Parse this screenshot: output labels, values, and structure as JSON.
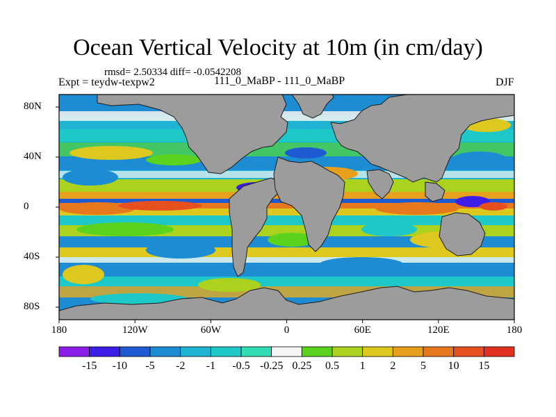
{
  "title": "Ocean Vertical Velocity at 10m (in cm/day)",
  "stats": "rmsd= 2.50334 diff= -0.0542208",
  "experiment": "Expt = teydw-texpw2",
  "comparison": "111_0_MaBP - 111_0_MaBP",
  "season": "DJF",
  "lat_ticks": [
    {
      "label": "80N",
      "lat": 80
    },
    {
      "label": "40N",
      "lat": 40
    },
    {
      "label": "0",
      "lat": 0
    },
    {
      "label": "40S",
      "lat": -40
    },
    {
      "label": "80S",
      "lat": -80
    }
  ],
  "lon_ticks": [
    {
      "label": "180",
      "lon": -180
    },
    {
      "label": "120W",
      "lon": -120
    },
    {
      "label": "60W",
      "lon": -60
    },
    {
      "label": "0",
      "lon": 0
    },
    {
      "label": "60E",
      "lon": 60
    },
    {
      "label": "120E",
      "lon": 120
    },
    {
      "label": "180",
      "lon": 180
    }
  ],
  "colorbar": {
    "levels": [
      "-15",
      "-10",
      "-5",
      "-2",
      "-1",
      "-0.5",
      "-0.25",
      "0.25",
      "0.5",
      "1",
      "2",
      "5",
      "10",
      "15"
    ],
    "colors": [
      "#8a1ee6",
      "#3c1ee6",
      "#1e5ad2",
      "#1e8cd2",
      "#1eb4d2",
      "#1ec8c8",
      "#32dcb4",
      "#f5f5f5",
      "#5ad21e",
      "#aad21e",
      "#dcc81e",
      "#e6a01e",
      "#e6781e",
      "#e6501e",
      "#e0321e"
    ]
  },
  "colors": {
    "land": "#9c9c9c",
    "coast": "#1a1a1a",
    "frame": "#000000"
  }
}
